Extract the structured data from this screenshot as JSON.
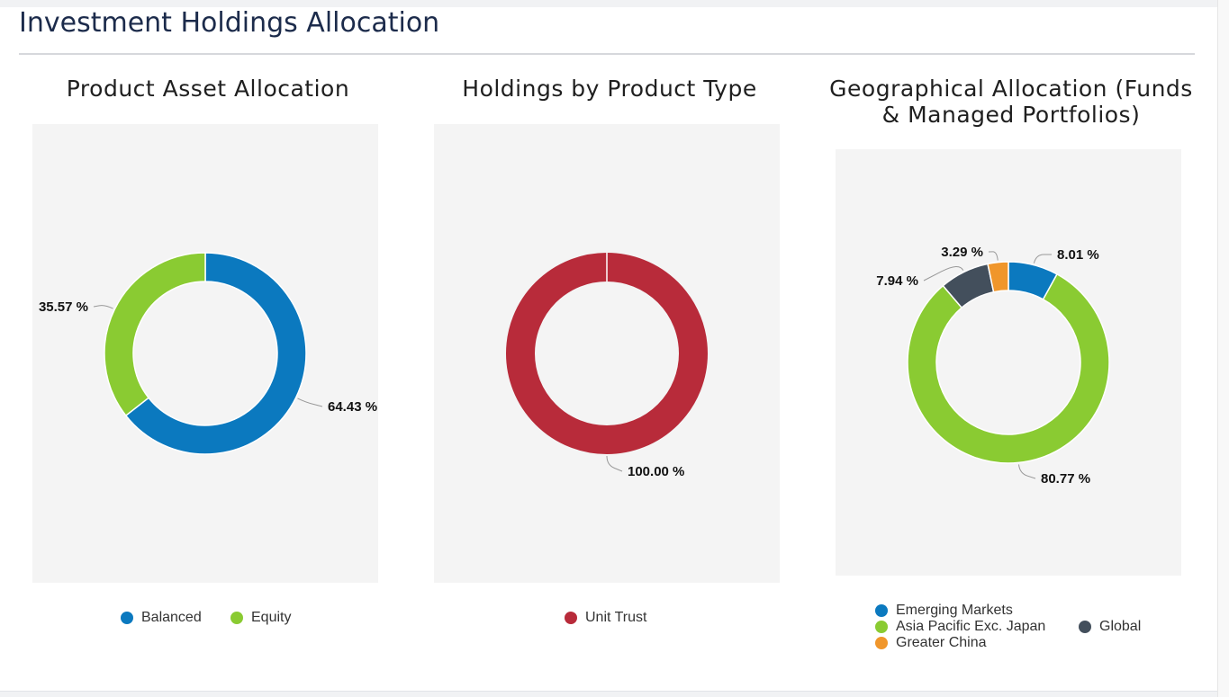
{
  "page": {
    "title": "Investment Holdings Allocation"
  },
  "chart_data": [
    {
      "type": "pie",
      "title": "Product Asset Allocation",
      "donut": true,
      "legend_position": "bottom",
      "series": [
        {
          "name": "Balanced",
          "value": 64.43,
          "label": "64.43 %",
          "color": "#0b79bf"
        },
        {
          "name": "Equity",
          "value": 35.57,
          "label": "35.57 %",
          "color": "#8acb32"
        }
      ]
    },
    {
      "type": "pie",
      "title": "Holdings by Product Type",
      "donut": true,
      "legend_position": "bottom",
      "series": [
        {
          "name": "Unit Trust",
          "value": 100.0,
          "label": "100.00 %",
          "color": "#b82b3a"
        }
      ]
    },
    {
      "type": "pie",
      "title": "Geographical Allocation (Funds & Managed Portfolios)",
      "title_lines": [
        "Geographical Allocation (Funds",
        "& Managed Portfolios)"
      ],
      "donut": true,
      "legend_position": "bottom",
      "series": [
        {
          "name": "Emerging Markets",
          "value": 8.01,
          "label": "8.01 %",
          "color": "#0b79bf"
        },
        {
          "name": "Asia Pacific Exc. Japan",
          "value": 80.77,
          "label": "80.77 %",
          "color": "#8acb32"
        },
        {
          "name": "Global",
          "value": 7.94,
          "label": "7.94 %",
          "color": "#434f5c"
        },
        {
          "name": "Greater China",
          "value": 3.29,
          "label": "3.29 %",
          "color": "#f0962b"
        }
      ]
    }
  ]
}
